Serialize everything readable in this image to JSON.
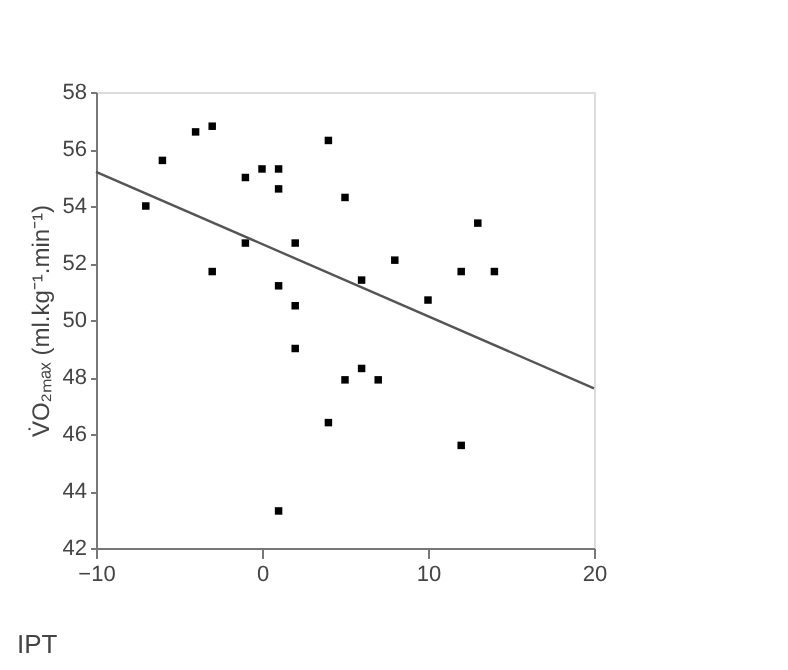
{
  "chart_data": {
    "type": "scatter",
    "xlabel": "IPT",
    "ylabel": "V̇O₂ₘₐₓ (ml.kg⁻¹.min⁻¹)",
    "xlim": [
      -10,
      20
    ],
    "xticks": [
      -10,
      0,
      10,
      20
    ],
    "ylim": [
      42,
      58
    ],
    "yticks": [
      42,
      44,
      46,
      48,
      50,
      52,
      54,
      56,
      58
    ],
    "grid": false,
    "series": [
      {
        "marker": "square",
        "color": "#000000",
        "x": [
          -7,
          -6,
          -4,
          -3,
          -1,
          0,
          1,
          1,
          4,
          5,
          -1,
          2,
          -3,
          1,
          2,
          2,
          6,
          8,
          10,
          12,
          13,
          14,
          5,
          6,
          7,
          4,
          12,
          1
        ],
        "values": [
          54.0,
          55.6,
          56.6,
          56.8,
          55.0,
          55.3,
          55.3,
          54.6,
          56.3,
          54.3,
          52.7,
          52.7,
          51.7,
          51.2,
          50.5,
          49.0,
          51.4,
          52.1,
          50.7,
          51.7,
          53.4,
          51.7,
          47.9,
          48.3,
          47.9,
          46.4,
          45.6,
          43.3
        ]
      },
      {
        "type": "line",
        "color": "#555555",
        "line_style": "solid",
        "x": [
          -10,
          20
        ],
        "values": [
          55.2,
          47.6
        ]
      }
    ]
  }
}
